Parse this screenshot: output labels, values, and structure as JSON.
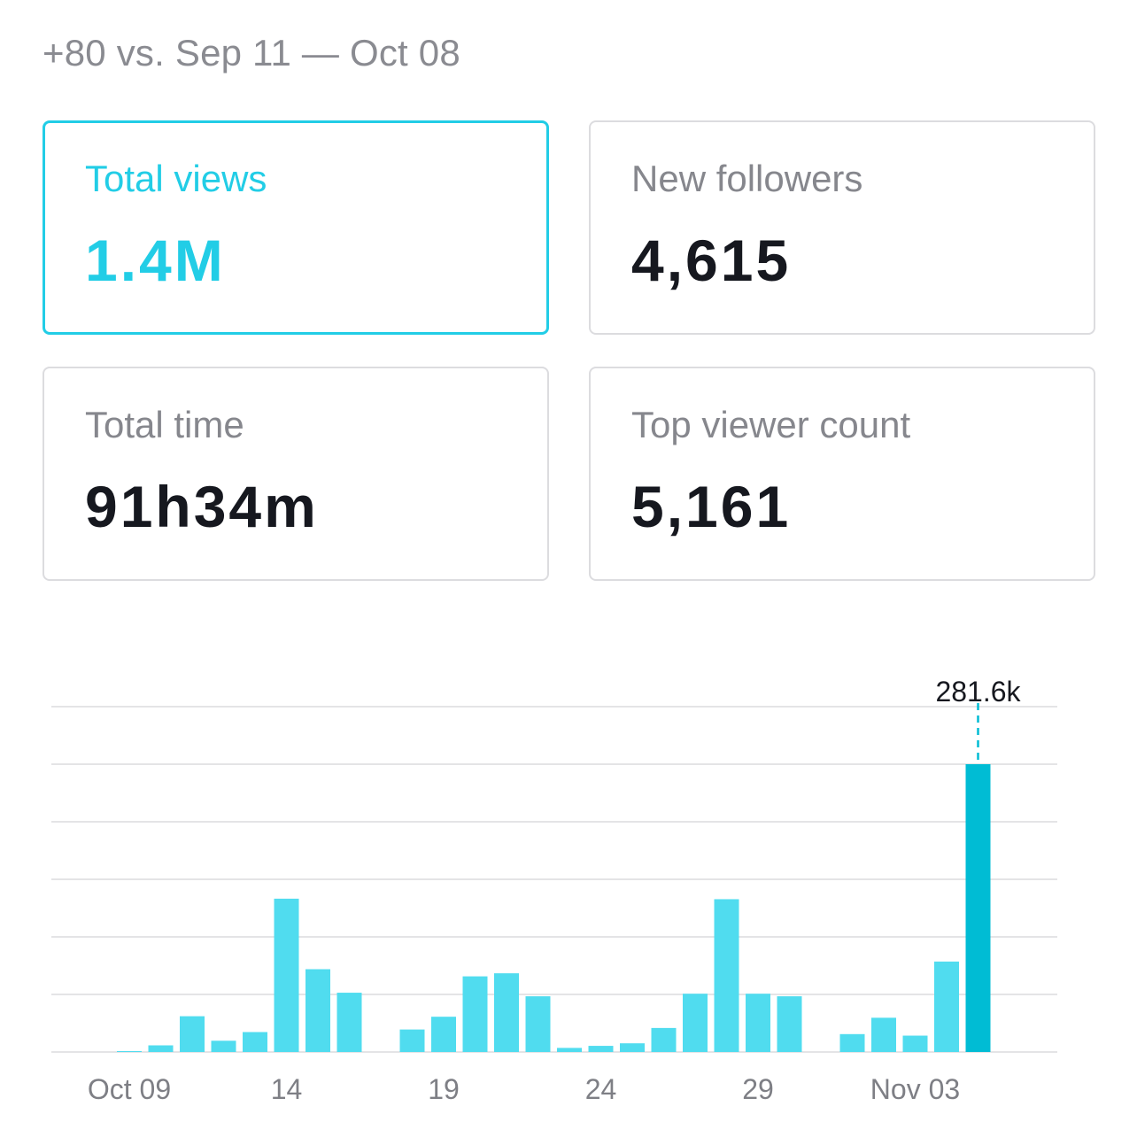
{
  "comparison_text": "+80 vs. Sep 11 — Oct 08",
  "metrics": {
    "total_views": {
      "label": "Total views",
      "value": "1.4M"
    },
    "new_followers": {
      "label": "New followers",
      "value": "4,615"
    },
    "total_time": {
      "label": "Total time",
      "value": "91h34m"
    },
    "top_viewer_count": {
      "label": "Top viewer count",
      "value": "5,161"
    }
  },
  "colors": {
    "accent": "#22cde6",
    "bar": "#50dcef",
    "bar_selected": "#00bcd4",
    "grid": "#e4e4e6"
  },
  "chart_data": {
    "type": "bar",
    "categories": [
      "Oct 09",
      "Oct 10",
      "Oct 11",
      "Oct 12",
      "Oct 13",
      "Oct 14",
      "Oct 15",
      "Oct 16",
      "Oct 17",
      "Oct 18",
      "Oct 19",
      "Oct 20",
      "Oct 21",
      "Oct 22",
      "Oct 23",
      "Oct 24",
      "Oct 25",
      "Oct 26",
      "Oct 27",
      "Oct 28",
      "Oct 29",
      "Oct 30",
      "Oct 31",
      "Nov 01",
      "Nov 02",
      "Nov 03",
      "Nov 04",
      "Nov 05"
    ],
    "x_tick_labels": [
      "Oct 09",
      "14",
      "19",
      "24",
      "29",
      "Nov 03"
    ],
    "x_tick_indices": [
      0,
      5,
      10,
      15,
      20,
      25
    ],
    "values": [
      0.5,
      6.5,
      35,
      11,
      19.5,
      150,
      81,
      58,
      0,
      22,
      34.5,
      74,
      77,
      54.5,
      4,
      6,
      8.5,
      23.5,
      57,
      149.5,
      57,
      54.5,
      0,
      17.5,
      33.5,
      16,
      88.5,
      281.6
    ],
    "selected_index": 27,
    "selected_label": "281.6k",
    "ylim": [
      0,
      337.9
    ],
    "grid_values": [
      0,
      56.3,
      112.6,
      168.9,
      225.3,
      281.6,
      337.9
    ],
    "grid": true,
    "title": "",
    "xlabel": "",
    "ylabel": ""
  }
}
